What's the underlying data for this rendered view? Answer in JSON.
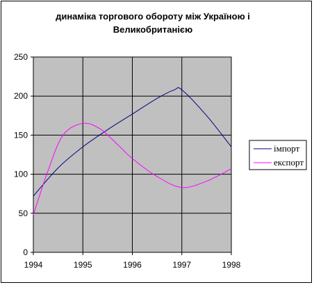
{
  "chart_data": {
    "type": "line",
    "title": "динаміка торгового обороту між Україною і Великобританією",
    "xlabel": "",
    "ylabel": "",
    "x": [
      1994,
      1995,
      1996,
      1997,
      1998
    ],
    "xlim": [
      1994,
      1998
    ],
    "ylim": [
      0,
      250
    ],
    "yticks": [
      0,
      50,
      100,
      150,
      200,
      250
    ],
    "grid": true,
    "legend_position": "right",
    "plot_background": "#c0c0c0",
    "series": [
      {
        "name": "імпорт",
        "color": "#000080",
        "points": [
          [
            1994,
            72
          ],
          [
            1994.5,
            108
          ],
          [
            1995,
            135
          ],
          [
            1995.5,
            157
          ],
          [
            1996,
            177
          ],
          [
            1996.5,
            197
          ],
          [
            1996.85,
            208
          ],
          [
            1997,
            208
          ],
          [
            1997.5,
            175
          ],
          [
            1998,
            135
          ]
        ]
      },
      {
        "name": "експорт",
        "color": "#ff00ff",
        "points": [
          [
            1994,
            48
          ],
          [
            1994.3,
            105
          ],
          [
            1994.6,
            150
          ],
          [
            1995,
            165
          ],
          [
            1995.35,
            158
          ],
          [
            1995.7,
            138
          ],
          [
            1996,
            120
          ],
          [
            1996.5,
            97
          ],
          [
            1997,
            83
          ],
          [
            1997.5,
            91
          ],
          [
            1998,
            107
          ]
        ]
      }
    ]
  }
}
